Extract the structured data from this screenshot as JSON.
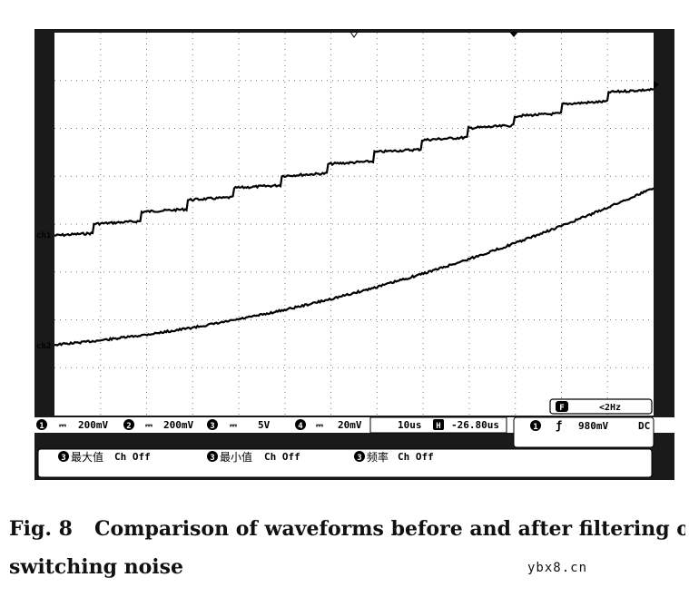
{
  "scope": {
    "channels": [
      {
        "label": "ch1",
        "description": "staircase waveform"
      },
      {
        "label": "ch2",
        "description": "smooth filtered waveform"
      }
    ],
    "status_bar": {
      "ch1_num": "1",
      "ch1_scale": "200mV",
      "ch2_num": "2",
      "ch2_scale": "200mV",
      "ch3_num": "3",
      "ch3_scale": "5V",
      "ch4_num": "4",
      "ch4_scale": "20mV",
      "timebase": "10us",
      "h_icon": "H",
      "delay": "-26.80us",
      "trig_num": "1",
      "trig_symbol": "ƒ",
      "trig_level": "980mV",
      "coupling": "DC"
    },
    "freq_box": {
      "f_icon": "F",
      "value": "<2Hz"
    },
    "measurements": [
      {
        "num": "3",
        "name": "最大值",
        "state": "Ch Off"
      },
      {
        "num": "3",
        "name": "最小值",
        "state": "Ch Off"
      },
      {
        "num": "3",
        "name": "频率",
        "state": "Ch Off"
      }
    ]
  },
  "caption": {
    "fig": "Fig. 8",
    "line1": "Comparison of waveforms before and after filtering out",
    "line2": "switching noise"
  },
  "watermark": "ybx8.cn",
  "colors": {
    "screen_bg": "#ffffff",
    "bezel": "#1a1a1a",
    "trace": "#000000",
    "grid": "#555555"
  }
}
